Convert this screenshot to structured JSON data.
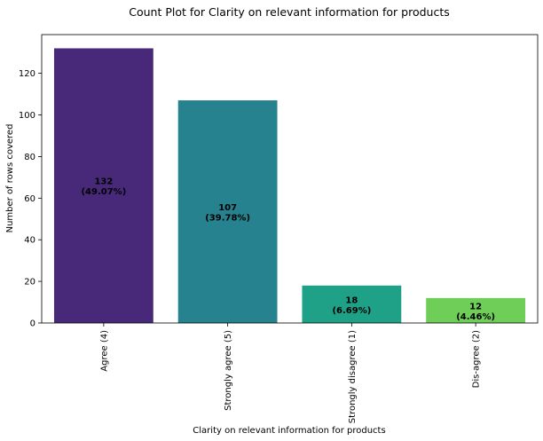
{
  "chart_data": {
    "type": "bar",
    "title": "Count Plot for Clarity on relevant information for products",
    "xlabel": "Clarity on relevant information for products",
    "ylabel": "Number of rows covered",
    "categories": [
      "Agree (4)",
      "Strongly agree (5)",
      "Strongly disagree (1)",
      "Dis-agree (2)"
    ],
    "values": [
      132,
      107,
      18,
      12
    ],
    "value_labels": [
      "132",
      "107",
      "18",
      "12"
    ],
    "percent_labels": [
      "(49.07%)",
      "(39.78%)",
      "(6.69%)",
      "(4.46%)"
    ],
    "colors": [
      "#482878",
      "#26828e",
      "#1fa187",
      "#6ece58"
    ],
    "yticks": [
      0,
      20,
      40,
      60,
      80,
      100,
      120
    ],
    "ylim": [
      0,
      138.6
    ],
    "grid": false,
    "legend": "none"
  }
}
